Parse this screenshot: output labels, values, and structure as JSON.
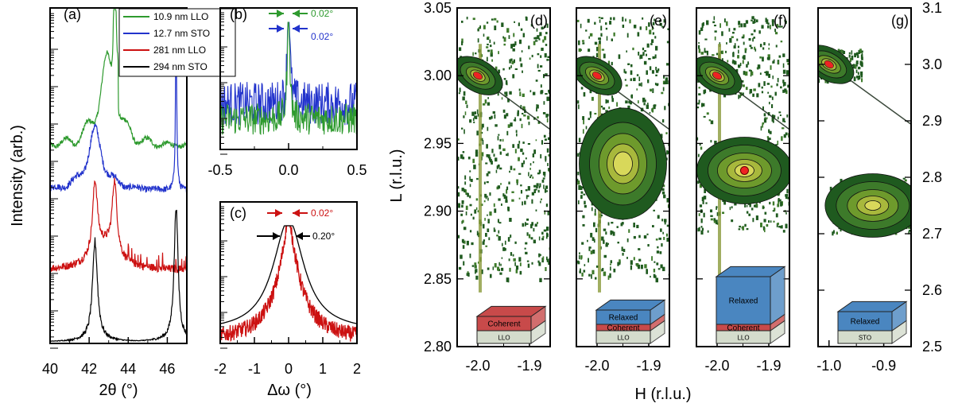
{
  "chart_data": [
    {
      "id": "a",
      "type": "line",
      "panel_label": "(a)",
      "xlabel": "2θ (°)",
      "ylabel": "Intensity (arb.)",
      "xlim": [
        40,
        47
      ],
      "x_ticks": [
        "40",
        "42",
        "44",
        "46"
      ],
      "y_scale": "log",
      "legend": "top-right",
      "series": [
        {
          "name": "10.9 nm LLO",
          "color": "#2e9a2e",
          "peaks_2theta": [
            43.3,
            46.5
          ]
        },
        {
          "name": "12.7 nm STO",
          "color": "#2233cc",
          "peaks_2theta": [
            42.3,
            46.5
          ]
        },
        {
          "name": "281 nm LLO",
          "color": "#cc1111",
          "peaks_2theta": [
            42.3,
            43.3
          ]
        },
        {
          "name": "294 nm STO",
          "color": "#000000",
          "peaks_2theta": [
            42.3,
            46.5
          ]
        }
      ]
    },
    {
      "id": "b",
      "type": "line",
      "panel_label": "(b)",
      "xlabel": "",
      "xlim": [
        -0.5,
        0.5
      ],
      "x_ticks": [
        "-0.5",
        "0.0",
        "0.5"
      ],
      "annotations": [
        {
          "text": "0.02°",
          "color": "#2e9a2e"
        },
        {
          "text": "0.02°",
          "color": "#2233cc"
        }
      ],
      "series": [
        {
          "color": "#2233cc",
          "fwhm": 0.02
        },
        {
          "color": "#2e9a2e",
          "fwhm": 0.02
        }
      ]
    },
    {
      "id": "c",
      "type": "line",
      "panel_label": "(c)",
      "xlabel": "Δω (°)",
      "xlim": [
        -2,
        2
      ],
      "x_ticks": [
        "-2",
        "-1",
        "0",
        "1",
        "2"
      ],
      "annotations": [
        {
          "text": "0.02°",
          "color": "#cc1111"
        },
        {
          "text": "0.20°",
          "color": "#000000"
        }
      ],
      "series": [
        {
          "color": "#cc1111",
          "fwhm": 0.02
        },
        {
          "color": "#000000",
          "fwhm": 0.2
        }
      ]
    },
    {
      "id": "d-g",
      "type": "heatmap",
      "xlabel": "H (r.l.u.)",
      "ylabel_left": "L (r.l.u.)",
      "left_axis_ticks": [
        "2.80",
        "2.85",
        "2.90",
        "2.95",
        "3.00",
        "3.05"
      ],
      "left_ylim": [
        2.8,
        3.05
      ],
      "right_axis_ticks": [
        "2.5",
        "2.6",
        "2.7",
        "2.8",
        "2.9",
        "3.0",
        "3.1"
      ],
      "right_ylim": [
        2.5,
        3.1
      ],
      "panels": [
        {
          "label": "(d)",
          "x_ticks": [
            "-2.0",
            "-1.9"
          ],
          "xlim": [
            -2.04,
            -1.86
          ],
          "substrate_peak": [
            -2.0,
            3.0
          ],
          "film_peak": null,
          "stack": [
            "Coherent",
            "LLO"
          ]
        },
        {
          "label": "(e)",
          "x_ticks": [
            "-2.0",
            "-1.9"
          ],
          "xlim": [
            -2.04,
            -1.86
          ],
          "substrate_peak": [
            -2.0,
            3.0
          ],
          "film_peak": [
            -1.95,
            2.935
          ],
          "stack": [
            "Relaxed",
            "Coherent",
            "LLO"
          ]
        },
        {
          "label": "(f)",
          "x_ticks": [
            "-2.0",
            "-1.9"
          ],
          "xlim": [
            -2.04,
            -1.86
          ],
          "substrate_peak": [
            -2.0,
            3.0
          ],
          "film_peak": [
            -1.947,
            2.93
          ],
          "stack": [
            "Relaxed",
            "Coherent",
            "LLO"
          ]
        },
        {
          "label": "(g)",
          "x_ticks": [
            "-1.0",
            "-0.9"
          ],
          "xlim": [
            -1.02,
            -0.85
          ],
          "substrate_peak": [
            -1.0,
            3.0
          ],
          "film_peak": [
            -0.92,
            2.75
          ],
          "stack": [
            "Relaxed",
            "STO"
          ]
        }
      ]
    }
  ],
  "colors": {
    "green": "#2e9a2e",
    "blue": "#2233cc",
    "red": "#cc1111",
    "black": "#000000",
    "map_dark": "#1f5a1f",
    "map_mid": "#6e9a2c",
    "map_light": "#d8d85a",
    "map_peak": "#ee2222",
    "film_blue": "#4a86c0",
    "film_red": "#c84a4a",
    "substrate": "#d4dccc"
  }
}
